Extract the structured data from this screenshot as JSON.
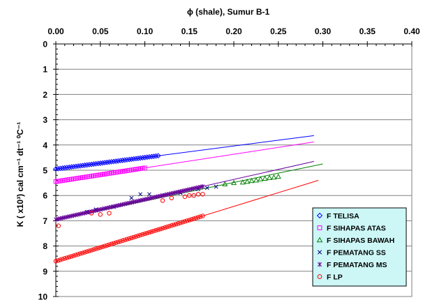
{
  "chart_data": {
    "type": "scatter",
    "title": "ϕ (shale), Sumur B-1",
    "xlabel": "",
    "ylabel": "K ( x10³) cal cm⁻¹ dt⁻¹ ⁰C⁻¹",
    "x_axis_position": "top",
    "y_reversed": true,
    "xlim": [
      0,
      0.4
    ],
    "ylim": [
      0,
      10
    ],
    "xticks": [
      "0.00",
      "0.05",
      "0.10",
      "0.15",
      "0.20",
      "0.25",
      "0.30",
      "0.35",
      "0.40"
    ],
    "yticks": [
      "0",
      "1",
      "2",
      "3",
      "4",
      "5",
      "6",
      "7",
      "8",
      "9",
      "10"
    ],
    "grid": "horizontal",
    "plot_background": "#ffffff",
    "legend": {
      "position": "bottom-right",
      "background": "#cdf7f7",
      "entries": [
        "F TELISA",
        "F SIHAPAS ATAS",
        "F SIHAPAS BAWAH",
        "F PEMATANG SS",
        "F PEMATANG MS",
        "F LP"
      ]
    },
    "series": [
      {
        "name": "F TELISA",
        "marker": "diamond",
        "color": "#0000ff",
        "points_x_range": [
          0.0,
          0.115
        ],
        "trend": {
          "x": [
            0.0,
            0.29
          ],
          "y": [
            4.95,
            3.63
          ]
        }
      },
      {
        "name": "F SIHAPAS ATAS",
        "marker": "square",
        "color": "#ff00ff",
        "points_x_range": [
          0.0,
          0.1
        ],
        "trend": {
          "x": [
            0.0,
            0.29
          ],
          "y": [
            5.45,
            3.88
          ]
        }
      },
      {
        "name": "F SIHAPAS BAWAH",
        "marker": "triangle",
        "color": "#008000",
        "points": {
          "x": [
            0.19,
            0.2,
            0.21,
            0.215,
            0.22,
            0.225,
            0.23,
            0.235,
            0.24,
            0.245,
            0.25
          ],
          "y": [
            5.55,
            5.5,
            5.48,
            5.45,
            5.42,
            5.4,
            5.35,
            5.33,
            5.3,
            5.28,
            5.25
          ]
        },
        "trend": {
          "x": [
            0.0,
            0.3
          ],
          "y": [
            6.95,
            4.75
          ]
        }
      },
      {
        "name": "F PEMATANG SS",
        "marker": "x",
        "color": "#000080",
        "points": {
          "x": [
            0.035,
            0.045,
            0.065,
            0.085,
            0.095,
            0.105,
            0.12,
            0.14,
            0.16,
            0.17,
            0.18
          ],
          "y": [
            6.65,
            6.55,
            6.45,
            6.1,
            5.95,
            5.95,
            6.0,
            5.9,
            5.75,
            5.7,
            5.65
          ]
        }
      },
      {
        "name": "F PEMATANG MS",
        "marker": "star",
        "color": "#660099",
        "points_x_range": [
          0.0,
          0.165
        ],
        "trend": {
          "x": [
            0.0,
            0.29
          ],
          "y": [
            6.95,
            4.65
          ]
        }
      },
      {
        "name": "F LP",
        "marker": "circle",
        "color": "#ff0000",
        "points_x_range": [
          0.0,
          0.165
        ],
        "outliers": {
          "x": [
            0.003,
            0.04,
            0.05,
            0.06,
            0.12,
            0.13,
            0.145,
            0.15,
            0.155,
            0.16,
            0.165
          ],
          "y": [
            7.2,
            6.7,
            6.75,
            6.7,
            6.2,
            6.1,
            6.05,
            6.0,
            6.0,
            5.95,
            5.95
          ]
        },
        "trend": {
          "x": [
            0.0,
            0.295
          ],
          "y": [
            8.6,
            5.4
          ]
        }
      }
    ]
  }
}
